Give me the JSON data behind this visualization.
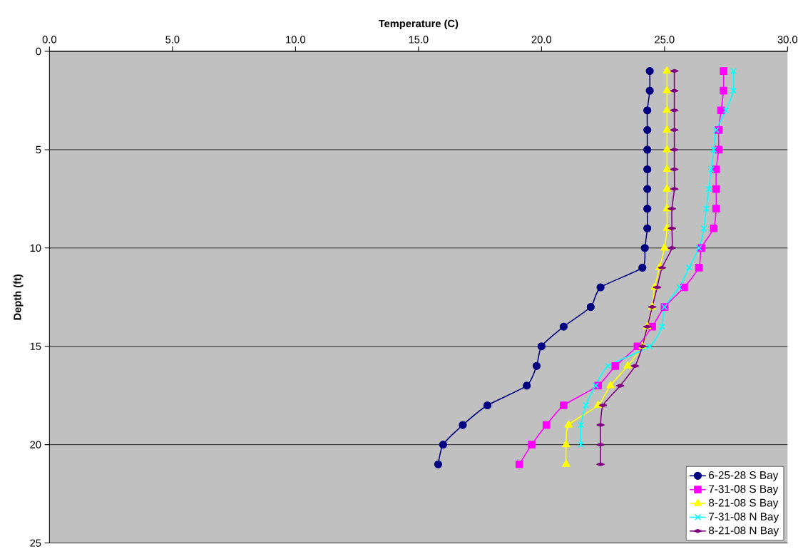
{
  "chart_data": {
    "type": "line",
    "xlabel": "Temperature (C)",
    "ylabel": "Depth (ft)",
    "xlim": [
      0,
      30
    ],
    "xticks": [
      {
        "value": 0,
        "label": "0.0"
      },
      {
        "value": 5,
        "label": "5.0"
      },
      {
        "value": 10,
        "label": "10.0"
      },
      {
        "value": 15,
        "label": "15.0"
      },
      {
        "value": 20,
        "label": "20.0"
      },
      {
        "value": 25,
        "label": "25.0"
      },
      {
        "value": 30,
        "label": "30.0"
      }
    ],
    "ylim": [
      25,
      0
    ],
    "yticks": [
      0,
      5,
      10,
      15,
      20,
      25
    ],
    "grid": "y",
    "legend": "bottom right",
    "line_style": "solid",
    "series": [
      {
        "name": "6-25-28 S Bay",
        "color": "#000080",
        "marker": "circle",
        "x": [
          24.4,
          24.4,
          24.3,
          24.3,
          24.3,
          24.3,
          24.3,
          24.3,
          24.3,
          24.2,
          24.1,
          22.4,
          22.0,
          20.9,
          20.0,
          19.8,
          19.4,
          17.8,
          16.8,
          16.0,
          15.8
        ],
        "values": [
          1,
          2,
          3,
          4,
          5,
          6,
          7,
          8,
          9,
          10,
          11,
          12,
          13,
          14,
          15,
          16,
          17,
          18,
          19,
          20,
          21
        ]
      },
      {
        "name": "7-31-08 S Bay",
        "color": "#ff00ff",
        "marker": "square",
        "x": [
          27.4,
          27.4,
          27.3,
          27.2,
          27.2,
          27.1,
          27.1,
          27.1,
          27.0,
          26.5,
          26.4,
          25.8,
          25.0,
          24.5,
          23.9,
          23.0,
          22.3,
          20.9,
          20.2,
          19.6,
          19.1
        ],
        "values": [
          1,
          2,
          3,
          4,
          5,
          6,
          7,
          8,
          9,
          10,
          11,
          12,
          13,
          14,
          15,
          16,
          17,
          18,
          19,
          20,
          21
        ]
      },
      {
        "name": "8-21-08 S Bay",
        "color": "#ffff00",
        "marker": "triangle",
        "x": [
          25.1,
          25.1,
          25.1,
          25.1,
          25.1,
          25.1,
          25.1,
          25.1,
          25.1,
          25.0,
          24.8,
          24.6,
          24.5,
          24.3,
          24.1,
          23.5,
          22.8,
          22.3,
          21.1,
          21.0,
          21.0
        ],
        "values": [
          1,
          2,
          3,
          4,
          5,
          6,
          7,
          8,
          9,
          10,
          11,
          12,
          13,
          14,
          15,
          16,
          17,
          18,
          19,
          20,
          21
        ]
      },
      {
        "name": "7-31-08 N Bay",
        "color": "#00ffff",
        "marker": "cross",
        "x": [
          27.8,
          27.8,
          27.5,
          27.1,
          27.0,
          26.9,
          26.8,
          26.7,
          26.6,
          26.4,
          26.0,
          25.6,
          25.0,
          24.9,
          24.4,
          22.7,
          22.2,
          21.8,
          21.6,
          21.6
        ],
        "values": [
          1,
          2,
          3,
          4,
          5,
          6,
          7,
          8,
          9,
          10,
          11,
          12,
          13,
          14,
          15,
          16,
          17,
          18,
          19,
          20
        ]
      },
      {
        "name": "8-21-08 N Bay",
        "color": "#800080",
        "marker": "diamond",
        "x": [
          25.4,
          25.4,
          25.4,
          25.4,
          25.4,
          25.4,
          25.4,
          25.3,
          25.3,
          25.3,
          24.9,
          24.7,
          24.5,
          24.3,
          24.1,
          23.8,
          23.2,
          22.5,
          22.4,
          22.4,
          22.4
        ],
        "values": [
          1,
          2,
          3,
          4,
          5,
          6,
          7,
          8,
          9,
          10,
          11,
          12,
          13,
          14,
          15,
          16,
          17,
          18,
          19,
          20,
          21
        ]
      }
    ]
  }
}
